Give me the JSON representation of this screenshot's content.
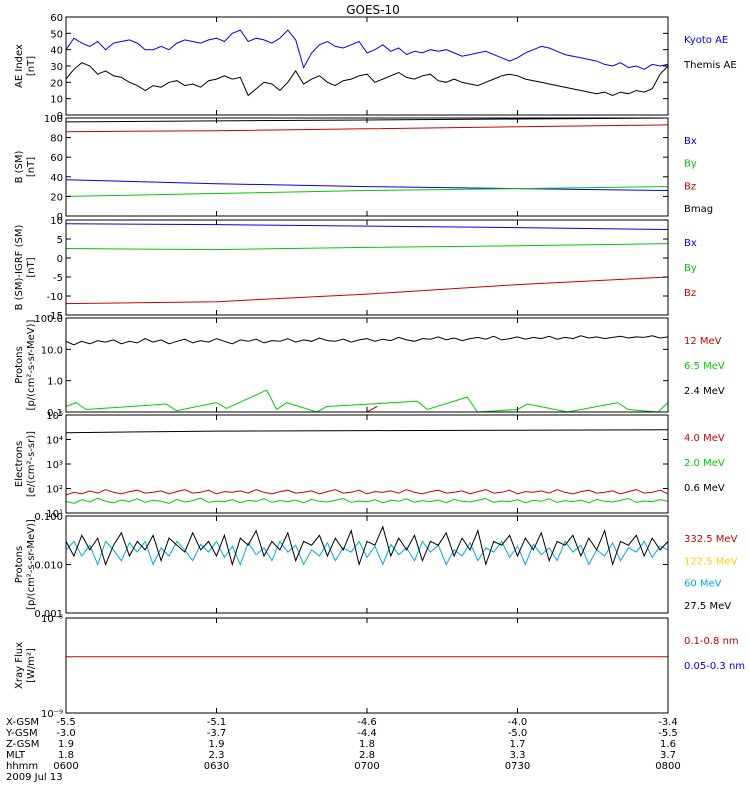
{
  "title": "GOES-10",
  "chart_data": [
    {
      "type": "line",
      "ylabel": [
        "AE Index",
        "[nT]"
      ],
      "yscale": "linear",
      "ylim": [
        0,
        60
      ],
      "yticks": [
        {
          "v": 0,
          "t": "0"
        },
        {
          "v": 10,
          "t": "10"
        },
        {
          "v": 20,
          "t": "20"
        },
        {
          "v": 30,
          "t": "30"
        },
        {
          "v": 40,
          "t": "40"
        },
        {
          "v": 50,
          "t": "50"
        },
        {
          "v": 60,
          "t": "60"
        }
      ],
      "series": [
        {
          "name": "Kyoto AE",
          "color": "#0000ff",
          "values": [
            40,
            47,
            44,
            42,
            45,
            40,
            44,
            45,
            46,
            44,
            40,
            40,
            42,
            40,
            44,
            46,
            45,
            44,
            46,
            47,
            45,
            50,
            52,
            45,
            47,
            46,
            44,
            47,
            52,
            46,
            29,
            38,
            43,
            45,
            42,
            41,
            43,
            45,
            38,
            40,
            43,
            39,
            41,
            37,
            39,
            38,
            40,
            39,
            40,
            38,
            36,
            37,
            38,
            39,
            37,
            35,
            33,
            35,
            38,
            40,
            42,
            41,
            39,
            37,
            36,
            35,
            34,
            33,
            31,
            30,
            32,
            29,
            30,
            28,
            31,
            30,
            31
          ]
        },
        {
          "name": "Themis AE",
          "color": "#000000",
          "values": [
            22,
            28,
            32,
            30,
            25,
            27,
            24,
            23,
            20,
            18,
            15,
            18,
            17,
            20,
            21,
            18,
            19,
            17,
            21,
            22,
            24,
            22,
            23,
            12,
            16,
            20,
            19,
            15,
            20,
            27,
            19,
            22,
            24,
            20,
            18,
            21,
            22,
            24,
            25,
            20,
            22,
            24,
            26,
            23,
            22,
            24,
            25,
            21,
            20,
            22,
            20,
            19,
            18,
            20,
            22,
            24,
            25,
            24,
            22,
            21,
            20,
            19,
            18,
            17,
            16,
            15,
            14,
            13,
            14,
            12,
            14,
            13,
            15,
            14,
            16,
            25,
            30
          ]
        }
      ]
    },
    {
      "type": "line",
      "ylabel": [
        "B (SM)",
        "[nT]"
      ],
      "yscale": "linear",
      "ylim": [
        0,
        100
      ],
      "yticks": [
        {
          "v": 0,
          "t": "0"
        },
        {
          "v": 20,
          "t": "20"
        },
        {
          "v": 40,
          "t": "40"
        },
        {
          "v": 60,
          "t": "60"
        },
        {
          "v": 80,
          "t": "80"
        },
        {
          "v": 100,
          "t": "100"
        }
      ],
      "series": [
        {
          "name": "Bx",
          "color": "#0000ff",
          "x": [
            0,
            30,
            60,
            90,
            120
          ],
          "values": [
            37,
            33,
            30,
            28,
            26
          ]
        },
        {
          "name": "By",
          "color": "#00cc00",
          "x": [
            0,
            30,
            60,
            90,
            120
          ],
          "values": [
            20,
            23,
            26,
            28,
            30
          ]
        },
        {
          "name": "Bz",
          "color": "#cc0000",
          "x": [
            0,
            30,
            60,
            90,
            120
          ],
          "values": [
            86,
            87,
            89,
            91,
            93
          ]
        },
        {
          "name": "Bmag",
          "color": "#000000",
          "x": [
            0,
            30,
            60,
            90,
            120
          ],
          "values": [
            96,
            97,
            98,
            99,
            100
          ]
        }
      ]
    },
    {
      "type": "line",
      "ylabel": [
        "B (SM)-IGRF (SM)",
        "[nT]"
      ],
      "yscale": "linear",
      "ylim": [
        -15,
        10
      ],
      "yticks": [
        {
          "v": -15,
          "t": "-15"
        },
        {
          "v": -10,
          "t": "-10"
        },
        {
          "v": -5,
          "t": "-5"
        },
        {
          "v": 0,
          "t": "0"
        },
        {
          "v": 5,
          "t": "5"
        },
        {
          "v": 10,
          "t": "10"
        }
      ],
      "series": [
        {
          "name": "Bx",
          "color": "#0000ff",
          "x": [
            0,
            30,
            60,
            90,
            120
          ],
          "values": [
            9,
            8.8,
            8.4,
            8,
            7.5
          ]
        },
        {
          "name": "By",
          "color": "#00cc00",
          "x": [
            0,
            30,
            60,
            90,
            120
          ],
          "values": [
            2.5,
            2.2,
            2.8,
            3.2,
            3.8
          ]
        },
        {
          "name": "Bz",
          "color": "#cc0000",
          "x": [
            0,
            30,
            60,
            90,
            120
          ],
          "values": [
            -12,
            -11.5,
            -9.5,
            -7,
            -5
          ]
        }
      ]
    },
    {
      "type": "line",
      "ylabel": [
        "Protons",
        "[p/(cm²-s-sr-MeV)]"
      ],
      "yscale": "log",
      "ylim": [
        0.1,
        100
      ],
      "yticks": [
        {
          "v": 0.1,
          "t": "0.1"
        },
        {
          "v": 1,
          "t": "1.0"
        },
        {
          "v": 10,
          "t": "10.0"
        },
        {
          "v": 100,
          "t": "100.0"
        }
      ],
      "series": [
        {
          "name": "12 MeV",
          "color": "#cc0000",
          "x": [
            60,
            62
          ],
          "values": [
            0.1,
            0.15
          ]
        },
        {
          "name": "6.5 MeV",
          "color": "#00cc00",
          "x": [
            0,
            2,
            4,
            20,
            22,
            30,
            32,
            40,
            42,
            44,
            50,
            52,
            70,
            72,
            80,
            82,
            90,
            92,
            100,
            110,
            112,
            118,
            120
          ],
          "values": [
            0.15,
            0.2,
            0.12,
            0.18,
            0.11,
            0.2,
            0.13,
            0.5,
            0.12,
            0.2,
            0.1,
            0.15,
            0.22,
            0.12,
            0.3,
            0.1,
            0.12,
            0.18,
            0.1,
            0.2,
            0.12,
            0.1,
            0.2
          ]
        },
        {
          "name": "2.4 MeV",
          "color": "#000000",
          "values": [
            18,
            14,
            18,
            15,
            19,
            17,
            20,
            15,
            18,
            16,
            22,
            17,
            20,
            15,
            18,
            21,
            16,
            19,
            17,
            22,
            18,
            15,
            20,
            18,
            21,
            16,
            19,
            18,
            22,
            17,
            20,
            18,
            23,
            19,
            18,
            21,
            17,
            20,
            22,
            18,
            21,
            19,
            24,
            20,
            18,
            22,
            21,
            25,
            20,
            23,
            19,
            22,
            24,
            21,
            26,
            20,
            22,
            25,
            21,
            24,
            22,
            26,
            21,
            24,
            22,
            27,
            23,
            25,
            22,
            24,
            26,
            23,
            25,
            24,
            27,
            23,
            25
          ]
        }
      ]
    },
    {
      "type": "line",
      "ylabel": [
        "Electrons",
        "[e/(cm²-s-sr)]"
      ],
      "yscale": "log",
      "ylim": [
        10,
        100000
      ],
      "yticks": [
        {
          "v": 10,
          "t": "10¹"
        },
        {
          "v": 100,
          "t": "10²"
        },
        {
          "v": 1000,
          "t": "10³"
        },
        {
          "v": 10000,
          "t": "10⁴"
        },
        {
          "v": 100000,
          "t": "10⁵"
        }
      ],
      "series": [
        {
          "name": "4.0 MeV",
          "color": "#cc0000",
          "values": [
            55,
            70,
            60,
            80,
            65,
            90,
            70,
            60,
            75,
            85,
            65,
            70,
            80,
            60,
            75,
            90,
            65,
            70,
            85,
            60,
            75,
            70,
            80,
            65,
            90,
            70,
            60,
            75,
            85,
            65,
            70,
            80,
            60,
            75,
            90,
            65,
            70,
            85,
            60,
            75,
            70,
            80,
            65,
            90,
            70,
            60,
            75,
            85,
            65,
            70,
            80,
            60,
            75,
            90,
            65,
            70,
            85,
            60,
            75,
            70,
            80,
            65,
            90,
            70,
            60,
            75,
            85,
            65,
            70,
            80,
            60,
            75,
            90,
            65,
            70,
            85,
            60
          ]
        },
        {
          "name": "2.0 MeV",
          "color": "#00cc00",
          "values": [
            30,
            25,
            35,
            28,
            40,
            30,
            26,
            34,
            29,
            38,
            27,
            33,
            30,
            25,
            36,
            28,
            32,
            40,
            27,
            31,
            29,
            35,
            26,
            33,
            30,
            38,
            27,
            32,
            29,
            34,
            26,
            36,
            30,
            28,
            33,
            39,
            27,
            31,
            29,
            35,
            26,
            33,
            30,
            38,
            27,
            32,
            29,
            34,
            26,
            36,
            30,
            28,
            33,
            39,
            27,
            31,
            29,
            35,
            26,
            33,
            30,
            38,
            27,
            32,
            29,
            34,
            26,
            36,
            30,
            28,
            33,
            39,
            27,
            31,
            29,
            35,
            30
          ]
        },
        {
          "name": "0.6 MeV",
          "color": "#000000",
          "x": [
            0,
            30,
            60,
            90,
            120
          ],
          "values": [
            19000,
            22000,
            23000,
            24000,
            25000
          ]
        }
      ]
    },
    {
      "type": "line",
      "ylabel": [
        "Protons",
        "[p/(cm²-s-sr-MeV)]"
      ],
      "yscale": "log",
      "ylim": [
        0.001,
        0.1
      ],
      "yticks": [
        {
          "v": 0.001,
          "t": "0.001"
        },
        {
          "v": 0.01,
          "t": "0.010"
        },
        {
          "v": 0.1,
          "t": "0.100"
        }
      ],
      "series": [
        {
          "name": "332.5 MeV",
          "color": "#cc0000",
          "values": []
        },
        {
          "name": "122.5 MeV",
          "color": "#ffcc00",
          "values": []
        },
        {
          "name": "60 MeV",
          "color": "#00aadd",
          "values": [
            0.02,
            0.03,
            0.015,
            0.025,
            0.01,
            0.03,
            0.02,
            0.012,
            0.028,
            0.018,
            0.03,
            0.01,
            0.022,
            0.015,
            0.03,
            0.02,
            0.012,
            0.026,
            0.018,
            0.03,
            0.014,
            0.024,
            0.01,
            0.028,
            0.016,
            0.022,
            0.012,
            0.03,
            0.018,
            0.025,
            0.01,
            0.02,
            0.015,
            0.028,
            0.012,
            0.022,
            0.018,
            0.03,
            0.014,
            0.024,
            0.01,
            0.026,
            0.016,
            0.022,
            0.012,
            0.03,
            0.018,
            0.025,
            0.01,
            0.02,
            0.015,
            0.028,
            0.012,
            0.022,
            0.018,
            0.03,
            0.014,
            0.024,
            0.01,
            0.026,
            0.016,
            0.022,
            0.012,
            0.03,
            0.018,
            0.025,
            0.01,
            0.02,
            0.015,
            0.028,
            0.012,
            0.022,
            0.018,
            0.03,
            0.014,
            0.024,
            0.02
          ]
        },
        {
          "name": "27.5 MeV",
          "color": "#000000",
          "values": [
            0.03,
            0.015,
            0.04,
            0.02,
            0.035,
            0.01,
            0.025,
            0.045,
            0.015,
            0.03,
            0.02,
            0.04,
            0.012,
            0.035,
            0.025,
            0.018,
            0.045,
            0.02,
            0.03,
            0.015,
            0.04,
            0.01,
            0.035,
            0.025,
            0.05,
            0.015,
            0.03,
            0.02,
            0.045,
            0.012,
            0.03,
            0.025,
            0.04,
            0.015,
            0.035,
            0.02,
            0.05,
            0.01,
            0.03,
            0.025,
            0.06,
            0.015,
            0.035,
            0.02,
            0.04,
            0.012,
            0.03,
            0.025,
            0.045,
            0.015,
            0.035,
            0.02,
            0.05,
            0.01,
            0.03,
            0.025,
            0.04,
            0.015,
            0.035,
            0.02,
            0.045,
            0.012,
            0.03,
            0.025,
            0.04,
            0.015,
            0.035,
            0.02,
            0.05,
            0.01,
            0.03,
            0.025,
            0.04,
            0.015,
            0.035,
            0.02,
            0.03
          ]
        }
      ]
    },
    {
      "type": "line",
      "ylabel": [
        "Xray Flux",
        "[W/m²]"
      ],
      "yscale": "log",
      "ylim": [
        1e-09,
        1e-08
      ],
      "yticks": [
        {
          "v": 1e-09,
          "t": "10⁻⁹"
        },
        {
          "v": 1e-08,
          "t": "10⁻⁸"
        }
      ],
      "series": [
        {
          "name": "0.1-0.8 nm",
          "color": "#cc0000",
          "x": [
            0,
            120
          ],
          "values": [
            3.9e-09,
            3.9e-09
          ]
        },
        {
          "name": "0.05-0.3 nm",
          "color": "#0000ff",
          "values": []
        }
      ]
    }
  ],
  "x_axis": {
    "ticks": [
      {
        "minute": 0,
        "xgsm": "-5.5",
        "ygsm": "-3.0",
        "zgsm": "1.9",
        "mlt": "1.8",
        "hhmm": "0600"
      },
      {
        "minute": 30,
        "xgsm": "-5.1",
        "ygsm": "-3.7",
        "zgsm": "1.9",
        "mlt": "2.3",
        "hhmm": "0630"
      },
      {
        "minute": 60,
        "xgsm": "-4.6",
        "ygsm": "-4.4",
        "zgsm": "1.8",
        "mlt": "2.8",
        "hhmm": "0700"
      },
      {
        "minute": 90,
        "xgsm": "-4.0",
        "ygsm": "-5.0",
        "zgsm": "1.7",
        "mlt": "3.3",
        "hhmm": "0730"
      },
      {
        "minute": 120,
        "xgsm": "-3.4",
        "ygsm": "-5.5",
        "zgsm": "1.6",
        "mlt": "3.7",
        "hhmm": "0800"
      }
    ],
    "row_labels": [
      "X-GSM",
      "Y-GSM",
      "Z-GSM",
      "MLT",
      "hhmm"
    ],
    "date": "2009 Jul 13"
  }
}
